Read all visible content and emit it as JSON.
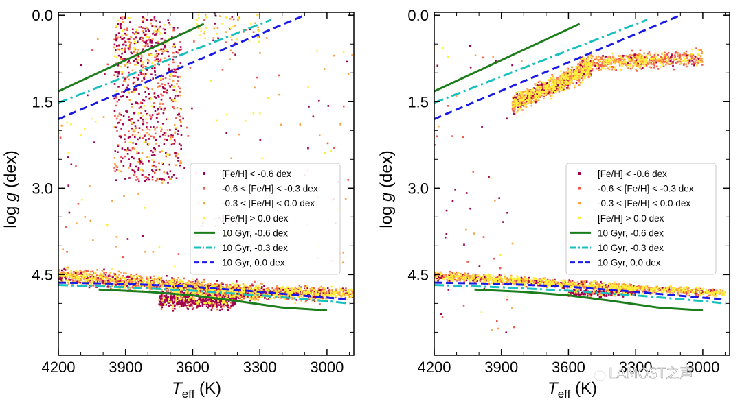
{
  "chart_data": [
    {
      "type": "scatter",
      "xlabel_main": "T",
      "xlabel_sub": "eff",
      "xlabel_unit": " (K)",
      "ylabel_main": "log",
      "ylabel_var": "g",
      "ylabel_unit": " (dex)",
      "xlim": [
        4200,
        2880
      ],
      "ylim": [
        5.9,
        -0.05
      ],
      "xticks": [
        4200,
        3900,
        3600,
        3300,
        3000
      ],
      "xtick_labels": [
        "4200",
        "3900",
        "3600",
        "3300",
        "3000"
      ],
      "yticks": [
        0.0,
        1.5,
        3.0,
        4.5
      ],
      "ytick_labels": [
        "0.0",
        "1.5",
        "3.0",
        "4.5"
      ],
      "legend_position": "center-right",
      "series": [
        {
          "name": "[Fe/H] < -0.6 dex",
          "color": "#a0004e",
          "kind": "scatter"
        },
        {
          "name": "-0.6 < [Fe/H] < -0.3 dex",
          "color": "#f35a4e",
          "kind": "scatter"
        },
        {
          "name": "-0.3 < [Fe/H] < 0.0 dex",
          "color": "#fca040",
          "kind": "scatter"
        },
        {
          "name": "[Fe/H] > 0.0 dex",
          "color": "#ffee3a",
          "kind": "scatter"
        },
        {
          "name": "10 Gyr, -0.6 dex",
          "color": "#1b7d1b",
          "kind": "line",
          "dash": "solid",
          "upper": {
            "x": [
              4200,
              3550
            ],
            "y": [
              1.32,
              0.15
            ]
          },
          "lower": {
            "x": [
              4020,
              3800,
              3600,
              3400,
              3200,
              3000
            ],
            "y": [
              4.76,
              4.8,
              4.86,
              4.96,
              5.07,
              5.12
            ]
          }
        },
        {
          "name": "10 Gyr, -0.3 dex",
          "color": "#19c0c0",
          "kind": "line",
          "dash": "dashdot",
          "upper": {
            "x": [
              4200,
              3250
            ],
            "y": [
              1.52,
              0.08
            ]
          },
          "lower": {
            "x": [
              4200,
              3900,
              3600,
              3300,
              3000,
              2900
            ],
            "y": [
              4.68,
              4.72,
              4.78,
              4.86,
              4.96,
              5.0
            ]
          }
        },
        {
          "name": "10 Gyr, 0.0 dex",
          "color": "#1a1ae6",
          "kind": "line",
          "dash": "dashed",
          "upper": {
            "x": [
              4200,
              3100
            ],
            "y": [
              1.8,
              0.0
            ]
          },
          "lower": {
            "x": [
              4200,
              3900,
              3600,
              3300,
              3000,
              2900
            ],
            "y": [
              4.64,
              4.66,
              4.71,
              4.8,
              4.9,
              4.93
            ]
          }
        }
      ]
    },
    {
      "type": "scatter",
      "xlabel_main": "T",
      "xlabel_sub": "eff",
      "xlabel_unit": " (K)",
      "ylabel_main": "log",
      "ylabel_var": "g",
      "ylabel_unit": " (dex)",
      "xlim": [
        4200,
        2880
      ],
      "ylim": [
        5.9,
        -0.05
      ],
      "xticks": [
        4200,
        3900,
        3600,
        3300,
        3000
      ],
      "xtick_labels": [
        "4200",
        "3900",
        "3600",
        "3300",
        "3000"
      ],
      "yticks": [
        0.0,
        1.5,
        3.0,
        4.5
      ],
      "ytick_labels": [
        "0.0",
        "1.5",
        "3.0",
        "4.5"
      ],
      "legend_position": "center-right",
      "series": [
        {
          "name": "[Fe/H] < -0.6 dex",
          "color": "#a0004e",
          "kind": "scatter"
        },
        {
          "name": "-0.6 < [Fe/H] < -0.3 dex",
          "color": "#f35a4e",
          "kind": "scatter"
        },
        {
          "name": "-0.3 < [Fe/H] < 0.0 dex",
          "color": "#fca040",
          "kind": "scatter"
        },
        {
          "name": "[Fe/H] > 0.0 dex",
          "color": "#ffee3a",
          "kind": "scatter"
        },
        {
          "name": "10 Gyr, -0.6 dex",
          "color": "#1b7d1b",
          "kind": "line",
          "dash": "solid",
          "upper": {
            "x": [
              4200,
              3550
            ],
            "y": [
              1.32,
              0.15
            ]
          },
          "lower": {
            "x": [
              4020,
              3800,
              3600,
              3400,
              3200,
              3000
            ],
            "y": [
              4.76,
              4.8,
              4.86,
              4.96,
              5.07,
              5.12
            ]
          }
        },
        {
          "name": "10 Gyr, -0.3 dex",
          "color": "#19c0c0",
          "kind": "line",
          "dash": "dashdot",
          "upper": {
            "x": [
              4200,
              3250
            ],
            "y": [
              1.52,
              0.08
            ]
          },
          "lower": {
            "x": [
              4200,
              3900,
              3600,
              3300,
              3000,
              2900
            ],
            "y": [
              4.68,
              4.72,
              4.78,
              4.86,
              4.96,
              5.0
            ]
          }
        },
        {
          "name": "10 Gyr, 0.0 dex",
          "color": "#1a1ae6",
          "kind": "line",
          "dash": "dashed",
          "upper": {
            "x": [
              4200,
              3100
            ],
            "y": [
              1.8,
              0.0
            ]
          },
          "lower": {
            "x": [
              4200,
              3900,
              3600,
              3300,
              3000,
              2900
            ],
            "y": [
              4.64,
              4.66,
              4.71,
              4.8,
              4.9,
              4.93
            ]
          }
        }
      ]
    }
  ],
  "watermark": {
    "text": "LAMOST之声",
    "icon": "wechat-icon"
  }
}
